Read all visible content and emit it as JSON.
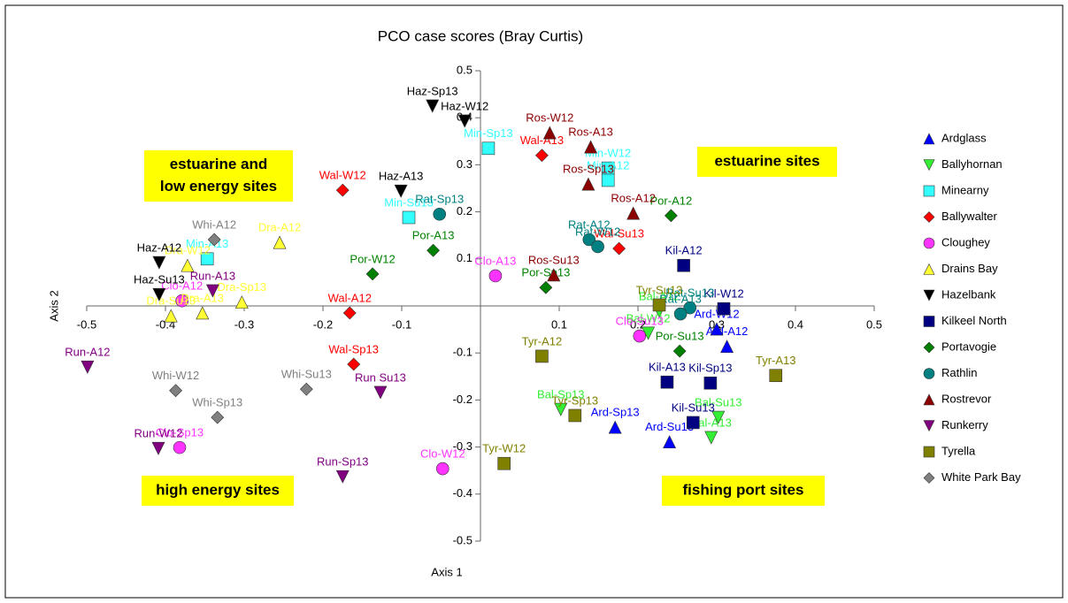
{
  "chart_data": {
    "type": "scatter",
    "title": "PCO case scores (Bray Curtis)",
    "x_label": "Axis 1",
    "y_label": "Axis 2",
    "xlim": [
      -0.5,
      0.5
    ],
    "ylim": [
      -0.5,
      0.5
    ],
    "xticks": [
      -0.5,
      -0.4,
      -0.3,
      -0.2,
      -0.1,
      0.1,
      0.2,
      0.3,
      0.4,
      0.5
    ],
    "yticks": [
      0.5,
      0.4,
      0.3,
      0.2,
      0.1,
      -0.1,
      -0.2,
      -0.3,
      -0.4,
      -0.5
    ],
    "annotations": [
      "estuarine and low energy sites",
      "estuarine sites",
      "high energy sites",
      "fishing port sites"
    ],
    "series": [
      {
        "name": "Ardglass",
        "color": "#0000ff",
        "marker": "triangle-up",
        "labels": [
          "Ard-Sp13",
          "Ard-Su13",
          "Ard-A12",
          "Ard-W12"
        ],
        "x": [
          0.171,
          0.24,
          0.313,
          0.3
        ],
        "y": [
          -0.258,
          -0.289,
          -0.086,
          -0.049
        ]
      },
      {
        "name": "Ballyhornan",
        "color": "#33ee33",
        "marker": "triangle-down",
        "labels": [
          "Bal-Sp13",
          "Bal-A13",
          "Bal-Su13",
          "Bal-A12",
          "Bal-W12"
        ],
        "x": [
          0.102,
          0.293,
          0.302,
          0.227,
          0.213
        ],
        "y": [
          -0.22,
          -0.28,
          -0.237,
          -0.011,
          -0.058
        ]
      },
      {
        "name": "Minearny",
        "color": "#33ffff",
        "marker": "square",
        "labels": [
          "Min-Sp13",
          "Min-W12",
          "Min-A12",
          "Min-Su13",
          "Min-A13"
        ],
        "x": [
          0.01,
          0.162,
          0.162,
          -0.091,
          -0.347
        ],
        "y": [
          0.335,
          0.293,
          0.267,
          0.188,
          0.1
        ]
      },
      {
        "name": "Ballywalter",
        "color": "#ff0000",
        "marker": "diamond",
        "labels": [
          "Wal-W12",
          "Wal-A13",
          "Wal-Su13",
          "Wal-A12",
          "Wal-Sp13"
        ],
        "x": [
          -0.175,
          0.078,
          0.176,
          -0.166,
          -0.161
        ],
        "y": [
          0.246,
          0.32,
          0.122,
          -0.015,
          -0.124
        ]
      },
      {
        "name": "Cloughey",
        "color": "#ff33ff",
        "marker": "circle",
        "labels": [
          "Clo-A13",
          "Clo-W12",
          "Clo-Sp13",
          "Clo-A12",
          "Clo-Su13"
        ],
        "x": [
          0.019,
          -0.048,
          -0.382,
          -0.379,
          0.202
        ],
        "y": [
          0.064,
          -0.346,
          -0.301,
          0.011,
          -0.064
        ]
      },
      {
        "name": "Drains Bay",
        "color": "#ffff33",
        "marker": "triangle-up",
        "labels": [
          "Dra-A12",
          "Dra-W12",
          "Dra-Sp13",
          "Dra-A13",
          "Dra-Su13"
        ],
        "x": [
          -0.255,
          -0.372,
          -0.303,
          -0.353,
          -0.393
        ],
        "y": [
          0.135,
          0.086,
          0.008,
          -0.015,
          -0.021
        ]
      },
      {
        "name": "Hazelbank",
        "color": "#000000",
        "marker": "triangle-down",
        "labels": [
          "Haz-Sp13",
          "Haz-W12",
          "Haz-A13",
          "Haz-A12",
          "Haz-Su13"
        ],
        "x": [
          -0.061,
          -0.02,
          -0.101,
          -0.408,
          -0.408
        ],
        "y": [
          0.425,
          0.393,
          0.244,
          0.092,
          0.024
        ]
      },
      {
        "name": "Kilkeel North",
        "color": "#000080",
        "marker": "square",
        "labels": [
          "Kil-A12",
          "Kil-W12",
          "Kil-A13",
          "Kil-Sp13",
          "Kil-Su13"
        ],
        "x": [
          0.258,
          0.309,
          0.237,
          0.292,
          0.27
        ],
        "y": [
          0.086,
          -0.006,
          -0.162,
          -0.164,
          -0.248
        ]
      },
      {
        "name": "Portavogie",
        "color": "#008000",
        "marker": "diamond",
        "labels": [
          "Por-A12",
          "Por-A13",
          "Por-W12",
          "Por-Sp13",
          "Por-Su13"
        ],
        "x": [
          0.242,
          -0.06,
          -0.137,
          0.083,
          0.253
        ],
        "y": [
          0.192,
          0.118,
          0.068,
          0.039,
          -0.096
        ]
      },
      {
        "name": "Rathlin",
        "color": "#008080",
        "marker": "circle",
        "labels": [
          "Rat-Sp13",
          "Rat-A12",
          "Rat-W12",
          "Rat-Su13",
          "Rat-A13"
        ],
        "x": [
          -0.052,
          0.138,
          0.149,
          0.266,
          0.254
        ],
        "y": [
          0.195,
          0.141,
          0.126,
          -0.004,
          -0.017
        ]
      },
      {
        "name": "Rostrevor",
        "color": "#8b0000",
        "marker": "triangle-up",
        "labels": [
          "Ros-W12",
          "Ros-A13",
          "Ros-Sp13",
          "Ros-A12",
          "Ros-Su13"
        ],
        "x": [
          0.088,
          0.14,
          0.137,
          0.194,
          0.093
        ],
        "y": [
          0.368,
          0.338,
          0.259,
          0.197,
          0.066
        ]
      },
      {
        "name": "Runkerry",
        "color": "#800080",
        "marker": "triangle-down",
        "labels": [
          "Run-A12",
          "Run-W12",
          "Run-A13",
          "Run Su13",
          "Run-Sp13"
        ],
        "x": [
          -0.499,
          -0.409,
          -0.34,
          -0.127,
          -0.175
        ],
        "y": [
          -0.13,
          -0.303,
          0.032,
          -0.184,
          -0.363
        ]
      },
      {
        "name": "Tyrella",
        "color": "#808000",
        "marker": "square",
        "labels": [
          "Tyr-A12",
          "Tyr-Sp13",
          "Tyr-W12",
          "Tyr-A13",
          "Tyr-Su13"
        ],
        "x": [
          0.078,
          0.12,
          0.03,
          0.375,
          0.227
        ],
        "y": [
          -0.107,
          -0.233,
          -0.335,
          -0.148,
          0.002
        ]
      },
      {
        "name": "White Park Bay",
        "color": "#808080",
        "marker": "diamond",
        "labels": [
          "Whi-A12",
          "Whi-W12",
          "Whi-Su13",
          "Whi-Sp13"
        ],
        "x": [
          -0.338,
          -0.387,
          -0.221,
          -0.334
        ],
        "y": [
          0.141,
          -0.18,
          -0.177,
          -0.237
        ]
      }
    ]
  }
}
